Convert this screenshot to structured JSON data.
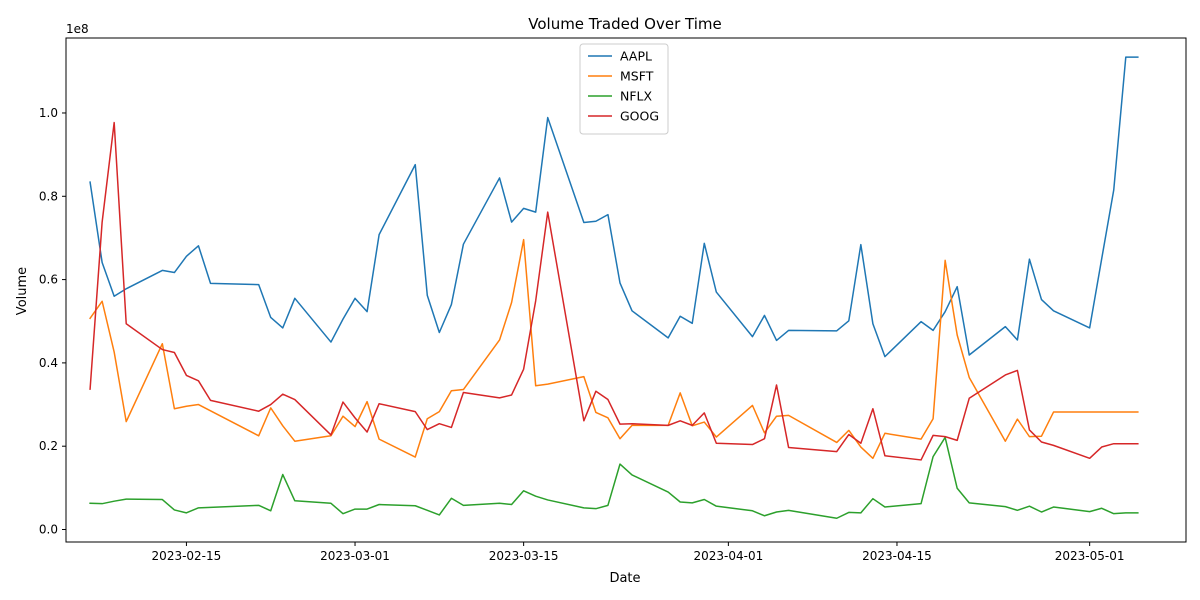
{
  "chart_data": {
    "type": "line",
    "title": "Volume Traded Over Time",
    "xlabel": "Date",
    "ylabel": "Volume",
    "y_multiplier_label": "1e8",
    "xlim": [
      "2023-02-05",
      "2023-05-09"
    ],
    "ylim": [
      -0.03,
      1.18
    ],
    "x_ticks": [
      {
        "date": "2023-02-15",
        "label": "2023-02-15"
      },
      {
        "date": "2023-03-01",
        "label": "2023-03-01"
      },
      {
        "date": "2023-03-15",
        "label": "2023-03-15"
      },
      {
        "date": "2023-04-01",
        "label": "2023-04-01"
      },
      {
        "date": "2023-04-15",
        "label": "2023-04-15"
      },
      {
        "date": "2023-05-01",
        "label": "2023-05-01"
      }
    ],
    "y_ticks": [
      {
        "value": 0.0,
        "label": "0.0"
      },
      {
        "value": 0.2,
        "label": "0.2"
      },
      {
        "value": 0.4,
        "label": "0.4"
      },
      {
        "value": 0.6,
        "label": "0.6"
      },
      {
        "value": 0.8,
        "label": "0.8"
      },
      {
        "value": 1.0,
        "label": "1.0"
      }
    ],
    "grid": false,
    "legend_position": "top-center",
    "x": [
      "2023-02-07",
      "2023-02-08",
      "2023-02-09",
      "2023-02-10",
      "2023-02-13",
      "2023-02-14",
      "2023-02-15",
      "2023-02-16",
      "2023-02-17",
      "2023-02-21",
      "2023-02-22",
      "2023-02-23",
      "2023-02-24",
      "2023-02-27",
      "2023-02-28",
      "2023-03-01",
      "2023-03-02",
      "2023-03-03",
      "2023-03-06",
      "2023-03-07",
      "2023-03-08",
      "2023-03-09",
      "2023-03-10",
      "2023-03-13",
      "2023-03-14",
      "2023-03-15",
      "2023-03-16",
      "2023-03-17",
      "2023-03-20",
      "2023-03-21",
      "2023-03-22",
      "2023-03-23",
      "2023-03-24",
      "2023-03-27",
      "2023-03-28",
      "2023-03-29",
      "2023-03-30",
      "2023-03-31",
      "2023-04-03",
      "2023-04-04",
      "2023-04-05",
      "2023-04-06",
      "2023-04-10",
      "2023-04-11",
      "2023-04-12",
      "2023-04-13",
      "2023-04-14",
      "2023-04-17",
      "2023-04-18",
      "2023-04-19",
      "2023-04-20",
      "2023-04-21",
      "2023-04-24",
      "2023-04-25",
      "2023-04-26",
      "2023-04-27",
      "2023-04-28",
      "2023-05-01",
      "2023-05-02",
      "2023-05-03",
      "2023-05-04",
      "2023-05-05"
    ],
    "series": [
      {
        "name": "AAPL",
        "color": "#1f77b4",
        "values": [
          0.834,
          0.641,
          0.56,
          0.578,
          0.622,
          0.617,
          0.656,
          0.681,
          0.591,
          0.588,
          0.509,
          0.484,
          0.555,
          0.45,
          0.505,
          0.555,
          0.523,
          0.708,
          0.876,
          0.562,
          0.473,
          0.54,
          0.685,
          0.844,
          0.738,
          0.771,
          0.762,
          0.989,
          0.737,
          0.74,
          0.756,
          0.592,
          0.525,
          0.46,
          0.512,
          0.495,
          0.687,
          0.57,
          0.463,
          0.514,
          0.454,
          0.478,
          0.477,
          0.501,
          0.684,
          0.494,
          0.415,
          0.499,
          0.478,
          0.523,
          0.583,
          0.419,
          0.487,
          0.455,
          0.649,
          0.552,
          0.525,
          0.484,
          0.65,
          0.815,
          1.134,
          1.134
        ]
      },
      {
        "name": "MSFT",
        "color": "#ff7f0e",
        "values": [
          0.507,
          0.548,
          0.426,
          0.259,
          0.446,
          0.29,
          0.296,
          0.3,
          0.285,
          0.225,
          0.292,
          0.249,
          0.212,
          0.225,
          0.272,
          0.247,
          0.307,
          0.217,
          0.174,
          0.266,
          0.283,
          0.333,
          0.336,
          0.455,
          0.545,
          0.696,
          0.345,
          0.349,
          0.367,
          0.281,
          0.268,
          0.218,
          0.25,
          0.25,
          0.328,
          0.249,
          0.258,
          0.222,
          0.298,
          0.232,
          0.272,
          0.274,
          0.209,
          0.238,
          0.198,
          0.171,
          0.231,
          0.217,
          0.266,
          0.646,
          0.467,
          0.365,
          0.212,
          0.265,
          0.223,
          0.224,
          0.282,
          0.282,
          0.282,
          0.282,
          0.282,
          0.282
        ]
      },
      {
        "name": "NFLX",
        "color": "#2ca02c",
        "values": [
          0.063,
          0.062,
          0.068,
          0.073,
          0.072,
          0.047,
          0.04,
          0.052,
          0.053,
          0.058,
          0.045,
          0.132,
          0.069,
          0.063,
          0.038,
          0.049,
          0.049,
          0.06,
          0.057,
          0.046,
          0.035,
          0.075,
          0.058,
          0.063,
          0.06,
          0.093,
          0.08,
          0.071,
          0.052,
          0.05,
          0.058,
          0.157,
          0.131,
          0.09,
          0.066,
          0.064,
          0.072,
          0.056,
          0.045,
          0.033,
          0.042,
          0.046,
          0.027,
          0.041,
          0.04,
          0.074,
          0.054,
          0.062,
          0.175,
          0.221,
          0.099,
          0.064,
          0.055,
          0.046,
          0.056,
          0.042,
          0.054,
          0.043,
          0.051,
          0.038,
          0.04,
          0.04
        ]
      },
      {
        "name": "GOOG",
        "color": "#d62728",
        "values": [
          0.337,
          0.738,
          0.977,
          0.494,
          0.432,
          0.425,
          0.37,
          0.357,
          0.31,
          0.284,
          0.3,
          0.325,
          0.312,
          0.227,
          0.306,
          0.268,
          0.234,
          0.302,
          0.283,
          0.24,
          0.254,
          0.245,
          0.329,
          0.316,
          0.323,
          0.385,
          0.549,
          0.762,
          0.261,
          0.332,
          0.312,
          0.253,
          0.254,
          0.25,
          0.261,
          0.25,
          0.28,
          0.207,
          0.204,
          0.218,
          0.347,
          0.197,
          0.187,
          0.228,
          0.207,
          0.29,
          0.177,
          0.167,
          0.226,
          0.223,
          0.214,
          0.315,
          0.371,
          0.382,
          0.239,
          0.21,
          0.202,
          0.171,
          0.198,
          0.206,
          0.206,
          0.206
        ]
      }
    ]
  }
}
